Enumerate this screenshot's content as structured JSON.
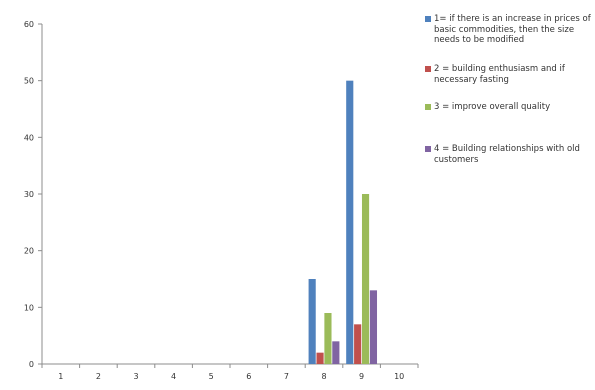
{
  "chart_data": {
    "type": "bar",
    "categories": [
      "1",
      "2",
      "3",
      "4",
      "5",
      "6",
      "7",
      "8",
      "9",
      "10"
    ],
    "series": [
      {
        "name": "1= if there is an increase in prices of basic commodities, then the size needs to be modified",
        "color": "#4f81bd",
        "values": [
          0,
          0,
          0,
          0,
          0,
          0,
          0,
          15,
          50,
          0
        ]
      },
      {
        "name": "2 = building enthusiasm and if necessary fasting",
        "color": "#c0504d",
        "values": [
          0,
          0,
          0,
          0,
          0,
          0,
          0,
          2,
          7,
          0
        ]
      },
      {
        "name": "3 = improve overall quality",
        "color": "#9bbb59",
        "values": [
          0,
          0,
          0,
          0,
          0,
          0,
          0,
          9,
          30,
          0
        ]
      },
      {
        "name": "4 = Building relationships with old customers",
        "color": "#8064a2",
        "values": [
          0,
          0,
          0,
          0,
          0,
          0,
          0,
          4,
          13,
          0
        ]
      }
    ],
    "ylim": [
      0,
      60
    ],
    "yticks": [
      "0",
      "10",
      "20",
      "30",
      "40",
      "50",
      "60"
    ],
    "grid": false,
    "legend_position": "right"
  }
}
